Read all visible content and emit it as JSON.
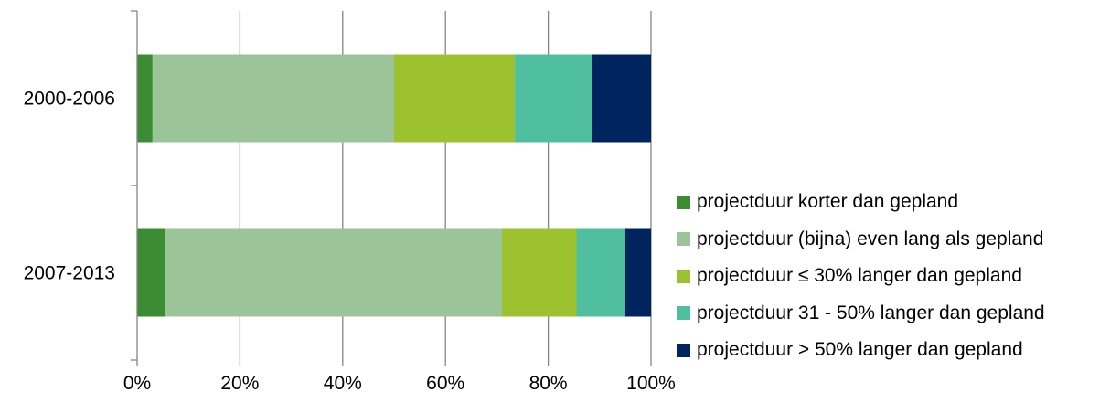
{
  "chart_data": {
    "type": "bar",
    "orientation": "horizontal",
    "stacked": "percent",
    "categories": [
      "2000-2006",
      "2007-2013"
    ],
    "series": [
      {
        "name": "projectduur korter dan gepland",
        "color": "#3C8C34",
        "values": [
          3,
          5.5
        ]
      },
      {
        "name": "projectduur (bijna) even lang als gepland",
        "color": "#9BC499",
        "values": [
          47,
          65.5
        ]
      },
      {
        "name": "projectduur ≤ 30% langer dan gepland",
        "color": "#9DC230",
        "values": [
          23.5,
          14.5
        ]
      },
      {
        "name": "projectduur 31 - 50% langer dan gepland",
        "color": "#4FBFA0",
        "values": [
          15,
          9.5
        ]
      },
      {
        "name": "projectduur > 50% langer dan gepland",
        "color": "#00245E",
        "values": [
          11.5,
          5
        ]
      }
    ],
    "xticks": [
      "0%",
      "20%",
      "40%",
      "60%",
      "80%",
      "100%"
    ],
    "xlim": [
      0,
      100
    ],
    "grid": true,
    "legend_position": "right"
  }
}
